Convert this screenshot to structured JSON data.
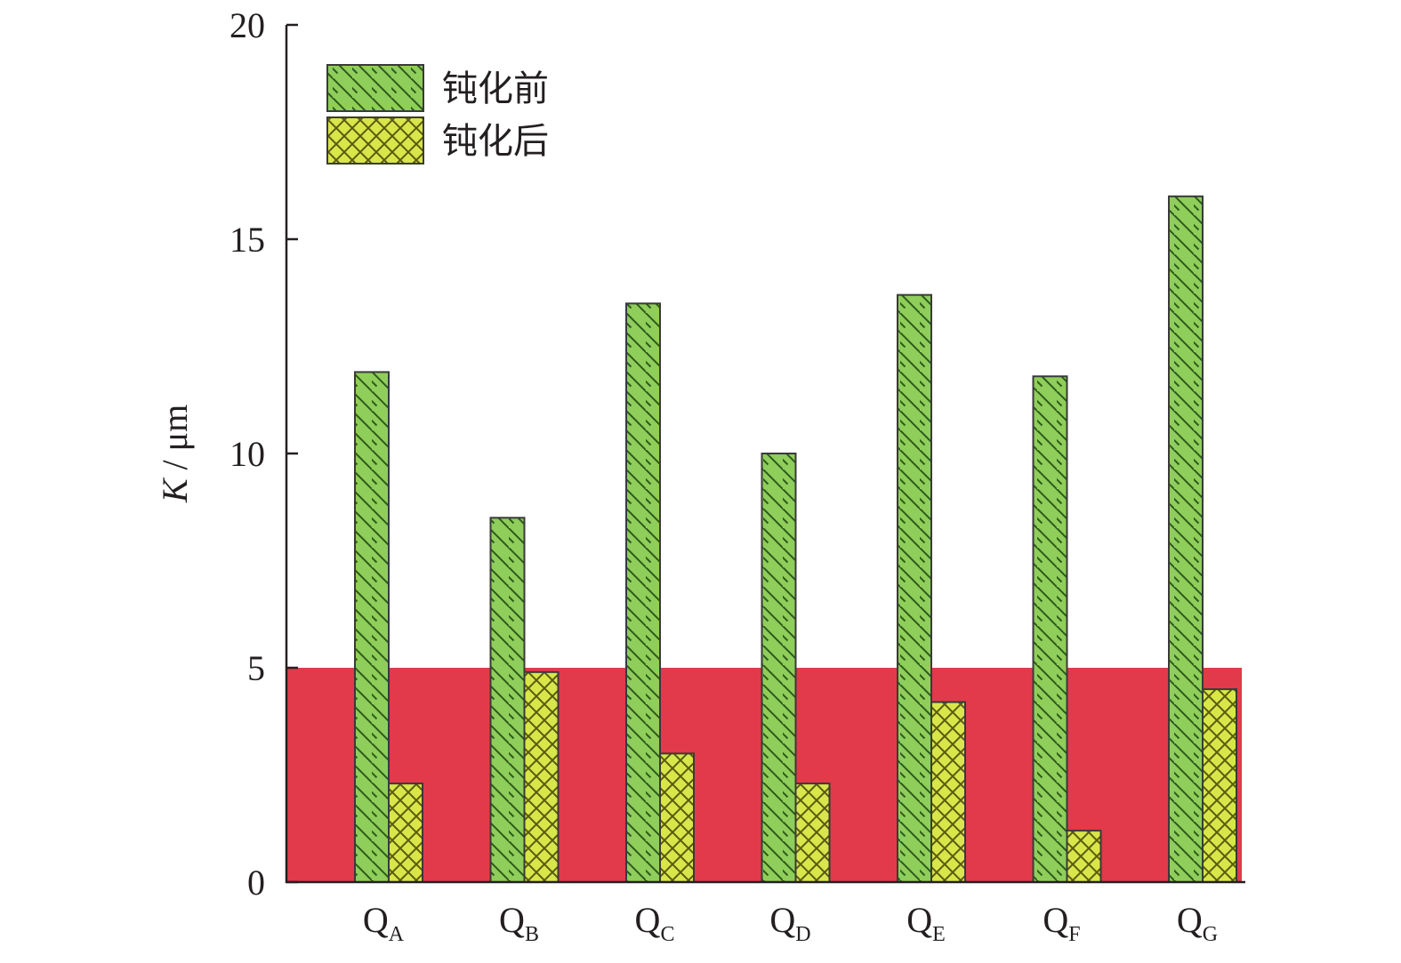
{
  "chart_data": {
    "type": "bar",
    "categories": [
      {
        "main": "Q",
        "sub": "A"
      },
      {
        "main": "Q",
        "sub": "B"
      },
      {
        "main": "Q",
        "sub": "C"
      },
      {
        "main": "Q",
        "sub": "D"
      },
      {
        "main": "Q",
        "sub": "E"
      },
      {
        "main": "Q",
        "sub": "F"
      },
      {
        "main": "Q",
        "sub": "G"
      }
    ],
    "series": [
      {
        "name": "钝化前",
        "values": [
          11.9,
          8.5,
          13.5,
          10.0,
          13.7,
          11.8,
          16.0
        ],
        "color": "#8fce5a",
        "pattern": "diagonal-hatch"
      },
      {
        "name": "钝化后",
        "values": [
          2.3,
          4.9,
          3.0,
          2.3,
          4.2,
          1.2,
          4.5
        ],
        "color": "#d8e64a",
        "pattern": "cross-hatch"
      }
    ],
    "ylabel": {
      "symbol": "K",
      "unit": " / μm"
    },
    "ylim": [
      0,
      20
    ],
    "yticks": [
      0,
      5,
      10,
      15,
      20
    ],
    "threshold_band": {
      "from": 0,
      "to": 5,
      "color": "#e23a4a"
    },
    "legend_position": "top-left",
    "grid": false,
    "colors": {
      "axis": "#231f20",
      "bar_stroke": "#3a3a3a"
    }
  }
}
